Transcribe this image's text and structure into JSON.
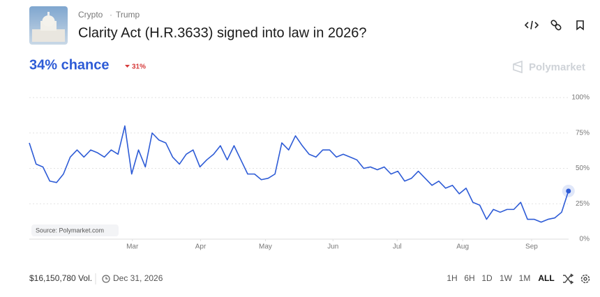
{
  "header": {
    "breadcrumbs": [
      "Crypto",
      "Trump"
    ],
    "title": "Clarity Act (H.R.3633) signed into law in 2026?"
  },
  "chance": {
    "label": "34% chance",
    "change": "31%"
  },
  "brand": "Polymarket",
  "chart_data": {
    "type": "line",
    "annotation": "Source: Polymarket.com",
    "series": [
      {
        "color": "#2d5bd6",
        "values": [
          68,
          53,
          51,
          41,
          40,
          46,
          58,
          63,
          58,
          63,
          61,
          58,
          63,
          60,
          80,
          46,
          63,
          51,
          75,
          70,
          68,
          58,
          53,
          60,
          63,
          51,
          56,
          60,
          66,
          56,
          66,
          56,
          46,
          46,
          42,
          43,
          46,
          68,
          63,
          73,
          66,
          60,
          58,
          63,
          63,
          58,
          60,
          58,
          56,
          50,
          51,
          49,
          51,
          46,
          48,
          41,
          43,
          48,
          43,
          38,
          41,
          36,
          38,
          32,
          36,
          26,
          24,
          14,
          21,
          19,
          21,
          21,
          26,
          14,
          14,
          12,
          14,
          15,
          19,
          34
        ]
      }
    ],
    "xlim": [
      0,
      78
    ],
    "xticks": [
      {
        "value": 15.1,
        "label": "Mar"
      },
      {
        "value": 25.1,
        "label": "Apr"
      },
      {
        "value": 34.6,
        "label": "May"
      },
      {
        "value": 44.5,
        "label": "Jun"
      },
      {
        "value": 53.9,
        "label": "Jul"
      },
      {
        "value": 63.5,
        "label": "Aug"
      },
      {
        "value": 73.6,
        "label": "Sep"
      }
    ],
    "ylim": [
      0,
      100
    ],
    "yticks": [
      {
        "value": 0,
        "label": "0%"
      },
      {
        "value": 25,
        "label": "25%"
      },
      {
        "value": 50,
        "label": "50%"
      },
      {
        "value": 75,
        "label": "75%"
      },
      {
        "value": 100,
        "label": "100%"
      }
    ],
    "grid": true
  },
  "footer": {
    "volume": "$16,150,780 Vol.",
    "end_date": "Dec 31, 2026",
    "ranges": [
      "1H",
      "6H",
      "1D",
      "1W",
      "1M",
      "ALL"
    ],
    "active_range": "ALL"
  }
}
